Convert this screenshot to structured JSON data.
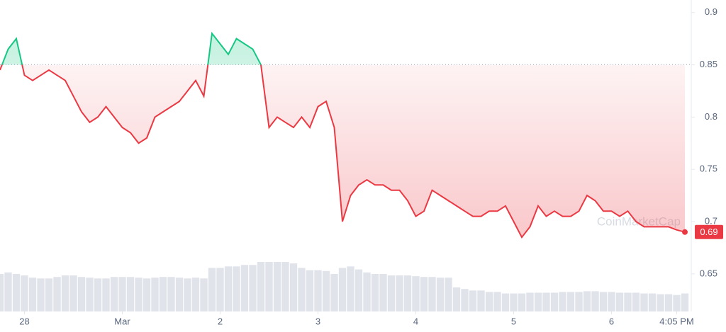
{
  "chart_data": {
    "type": "line",
    "xlim": [
      0,
      84
    ],
    "xticks": [
      {
        "value": 3,
        "label": "28"
      },
      {
        "value": 15,
        "label": "Mar"
      },
      {
        "value": 27,
        "label": "2"
      },
      {
        "value": 39,
        "label": "3"
      },
      {
        "value": 51,
        "label": "4"
      },
      {
        "value": 63,
        "label": "5"
      },
      {
        "value": 75,
        "label": "6"
      },
      {
        "value": 83,
        "label": "4:05 PM"
      }
    ],
    "ylim": [
      0.614,
      0.912
    ],
    "yticks": [
      0.65,
      0.7,
      0.75,
      0.8,
      0.85,
      0.9
    ],
    "baseline": 0.85,
    "up_color": "#16c784",
    "down_color": "#ea3943",
    "series": [
      {
        "values": [
          0.845,
          0.865,
          0.875,
          0.84,
          0.835,
          0.84,
          0.845,
          0.84,
          0.835,
          0.82,
          0.805,
          0.795,
          0.8,
          0.81,
          0.8,
          0.79,
          0.785,
          0.775,
          0.78,
          0.8,
          0.805,
          0.81,
          0.815,
          0.825,
          0.835,
          0.82,
          0.88,
          0.87,
          0.86,
          0.875,
          0.87,
          0.865,
          0.85,
          0.79,
          0.8,
          0.795,
          0.79,
          0.8,
          0.79,
          0.81,
          0.815,
          0.79,
          0.7,
          0.725,
          0.735,
          0.74,
          0.735,
          0.735,
          0.73,
          0.73,
          0.72,
          0.705,
          0.71,
          0.73,
          0.725,
          0.72,
          0.715,
          0.71,
          0.705,
          0.705,
          0.71,
          0.71,
          0.715,
          0.7,
          0.685,
          0.695,
          0.715,
          0.705,
          0.71,
          0.705,
          0.705,
          0.71,
          0.725,
          0.72,
          0.71,
          0.71,
          0.705,
          0.71,
          0.7,
          0.695,
          0.695,
          0.695,
          0.695,
          0.692,
          0.69
        ],
        "value_label": "0.69"
      }
    ],
    "volume": {
      "color": "#d8dce5",
      "values": [
        50,
        52,
        50,
        48,
        45,
        44,
        44,
        46,
        48,
        48,
        46,
        45,
        44,
        44,
        46,
        46,
        46,
        45,
        44,
        45,
        46,
        46,
        45,
        44,
        45,
        44,
        58,
        58,
        60,
        60,
        62,
        62,
        66,
        66,
        66,
        66,
        64,
        58,
        55,
        55,
        54,
        50,
        58,
        60,
        56,
        52,
        50,
        50,
        48,
        48,
        48,
        47,
        46,
        46,
        45,
        45,
        32,
        30,
        28,
        28,
        26,
        26,
        24,
        24,
        24,
        25,
        25,
        25,
        25,
        26,
        26,
        26,
        27,
        27,
        26,
        26,
        25,
        25,
        25,
        24,
        24,
        23,
        23,
        22,
        24
      ]
    },
    "watermark": "CoinMarketCap"
  }
}
